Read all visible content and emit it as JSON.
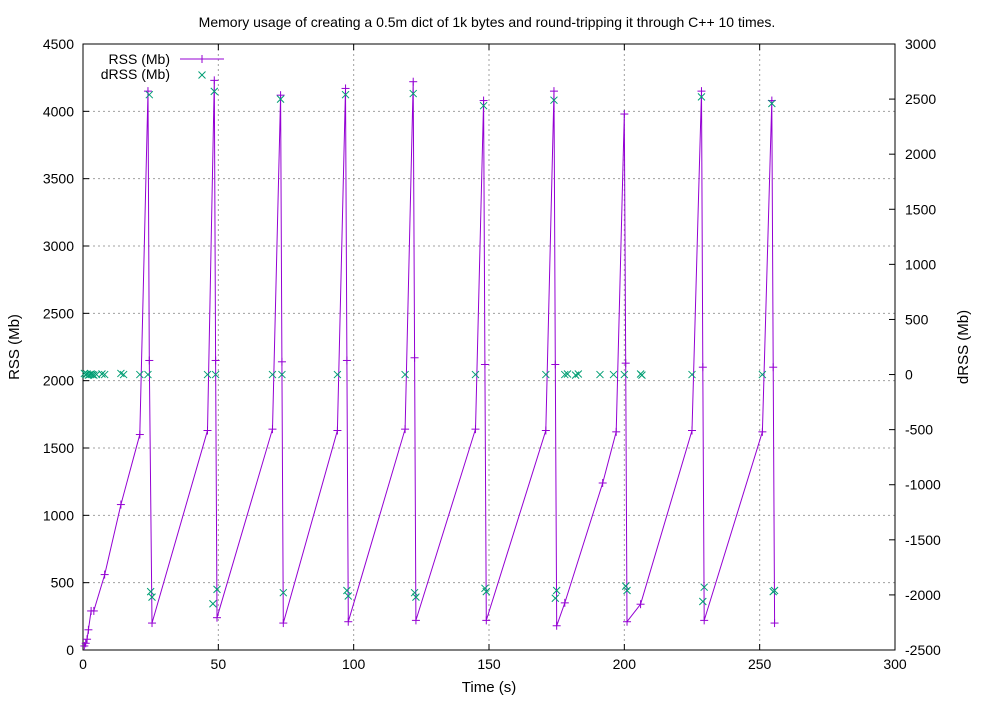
{
  "chart_data": {
    "type": "line",
    "title": "Memory usage of creating a 0.5m dict of 1k bytes and round-tripping it through C++ 10 times.",
    "xlabel": "Time (s)",
    "ylabel": "RSS (Mb)",
    "y2label": "dRSS (Mb)",
    "xlim": [
      0,
      300
    ],
    "ylim": [
      0,
      4500
    ],
    "y2lim": [
      -2500,
      3000
    ],
    "x_ticks": [
      "0",
      "50",
      "100",
      "150",
      "200",
      "250",
      "300"
    ],
    "y_ticks": [
      "0",
      "500",
      "1000",
      "1500",
      "2000",
      "2500",
      "3000",
      "3500",
      "4000",
      "4500"
    ],
    "y2_ticks": [
      "-2500",
      "-2000",
      "-1500",
      "-1000",
      "-500",
      "0",
      "500",
      "1000",
      "1500",
      "2000",
      "2500",
      "3000"
    ],
    "grid": true,
    "legend_position": "top-left",
    "colors": {
      "rss": "#9400d3",
      "drss": "#009e73"
    },
    "series": [
      {
        "name": "RSS (Mb)",
        "axis": "left",
        "style": "linespoints",
        "marker": "plus",
        "x": [
          0.5,
          1,
          1.5,
          2,
          3,
          4,
          8,
          14,
          21,
          24,
          24.5,
          25.5,
          46,
          48.5,
          49,
          49.5,
          70,
          73,
          73.5,
          74,
          94,
          97,
          97.5,
          98,
          119,
          122,
          122.5,
          123,
          145,
          148,
          148.5,
          149,
          171,
          174,
          174.5,
          175,
          178,
          192,
          197,
          200,
          200.5,
          201,
          206,
          225,
          228.5,
          229,
          229.5,
          251,
          254.5,
          255,
          255.5
        ],
        "y": [
          30,
          50,
          80,
          150,
          290,
          290,
          560,
          1080,
          1600,
          4150,
          2150,
          200,
          1630,
          4230,
          2150,
          240,
          1640,
          4120,
          2140,
          200,
          1630,
          4170,
          2150,
          210,
          1640,
          4220,
          2170,
          220,
          1640,
          4080,
          2120,
          220,
          1630,
          4150,
          2120,
          180,
          350,
          1240,
          1620,
          3980,
          2130,
          210,
          340,
          1630,
          4150,
          2100,
          220,
          1620,
          4080,
          2100,
          200
        ]
      },
      {
        "name": "dRSS (Mb)",
        "axis": "right",
        "style": "points",
        "marker": "cross",
        "x": [
          0.5,
          1,
          1.5,
          2,
          2.5,
          3,
          3.5,
          4,
          5,
          7,
          8,
          14,
          15,
          21,
          24,
          24.5,
          25,
          25.5,
          46,
          48,
          48.5,
          49,
          49.5,
          70,
          73,
          73.5,
          74,
          94,
          97,
          97.5,
          98,
          119,
          122,
          122.5,
          123,
          145,
          148,
          148.5,
          149,
          171,
          174,
          174.5,
          175,
          178,
          179,
          182,
          183,
          191,
          196,
          200,
          200.5,
          201,
          206,
          206.5,
          225,
          228.5,
          229,
          229.5,
          251,
          254.5,
          255,
          255.5
        ],
        "y": [
          10,
          0,
          5,
          -5,
          0,
          5,
          0,
          -5,
          0,
          5,
          0,
          10,
          0,
          0,
          0,
          2540,
          -1970,
          -2020,
          0,
          -2080,
          2570,
          0,
          -1950,
          0,
          2500,
          0,
          -1980,
          0,
          2540,
          -1960,
          -2010,
          0,
          2550,
          -1980,
          -2020,
          0,
          2440,
          -1940,
          -1970,
          0,
          2490,
          -2030,
          -1960,
          0,
          5,
          -5,
          5,
          0,
          0,
          0,
          -1920,
          -1960,
          5,
          -5,
          0,
          2520,
          -2060,
          -1930,
          0,
          2460,
          -1970,
          -1960
        ]
      }
    ]
  }
}
